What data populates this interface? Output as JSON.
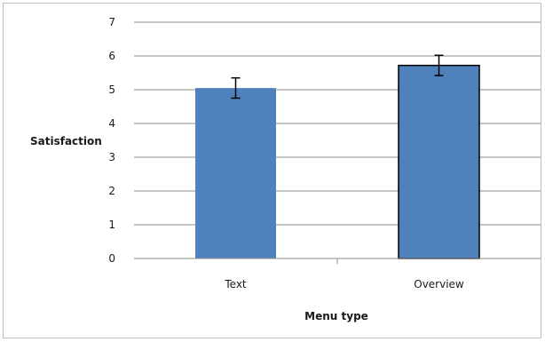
{
  "chart_data": {
    "type": "bar",
    "categories": [
      "Text",
      "Overview"
    ],
    "values": [
      5.05,
      5.72
    ],
    "error": [
      0.3,
      0.3
    ],
    "xlabel": "Menu type",
    "ylabel": "Satisfaction",
    "ylim": [
      0,
      7
    ],
    "yticks": [
      0,
      1,
      2,
      3,
      4,
      5,
      6,
      7
    ],
    "grid": true,
    "legend": "none",
    "bar_color": "#4f81bd"
  }
}
